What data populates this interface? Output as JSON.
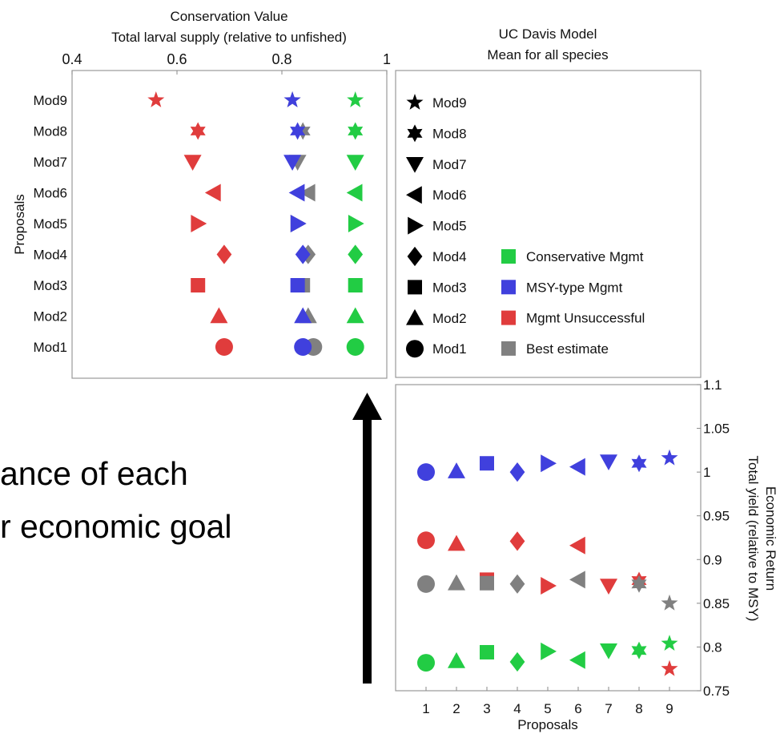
{
  "slide_text": {
    "line1": "ance of each",
    "line2": "r economic goal"
  },
  "chart_data": [
    {
      "type": "scatter",
      "title": "Conservation Value",
      "xlabel": "Total larval supply (relative to unfished)",
      "ylabel": "Proposals",
      "xlim": [
        0.4,
        1
      ],
      "xticks": [
        "0.4",
        "0.6",
        "0.8",
        "1"
      ],
      "categories": [
        "Mod1",
        "Mod2",
        "Mod3",
        "Mod4",
        "Mod5",
        "Mod6",
        "Mod7",
        "Mod8",
        "Mod9"
      ],
      "series": [
        {
          "name": "Best estimate",
          "color": "#808080",
          "values": [
            0.86,
            0.85,
            0.84,
            0.85,
            0.83,
            0.85,
            0.83,
            0.84,
            0.82
          ]
        },
        {
          "name": "MSY-type Mgmt",
          "color": "#4040dd",
          "values": [
            0.84,
            0.84,
            0.83,
            0.84,
            0.83,
            0.83,
            0.82,
            0.83,
            0.82
          ]
        },
        {
          "name": "Mgmt Unsuccessful",
          "color": "#e03c3c",
          "values": [
            0.69,
            0.68,
            0.64,
            0.69,
            0.64,
            0.67,
            0.63,
            0.64,
            0.56
          ]
        },
        {
          "name": "Conservative Mgmt",
          "color": "#22cc44",
          "values": [
            0.94,
            0.94,
            0.94,
            0.94,
            0.94,
            0.94,
            0.94,
            0.94,
            0.94
          ]
        }
      ]
    },
    {
      "type": "scatter",
      "title": "Economic Return",
      "ylabel": "Total yield (relative to MSY)",
      "xlabel": "Proposals",
      "ylim": [
        0.75,
        1.1
      ],
      "yticks": [
        "0.75",
        "0.8",
        "0.85",
        "0.9",
        "0.95",
        "1",
        "1.05",
        "1.1"
      ],
      "x": [
        1,
        2,
        3,
        4,
        5,
        6,
        7,
        8,
        9
      ],
      "series": [
        {
          "name": "MSY-type Mgmt",
          "color": "#4040dd",
          "values": [
            1.0,
            1.001,
            1.01,
            1.0,
            1.01,
            1.006,
            1.012,
            1.01,
            1.016
          ]
        },
        {
          "name": "Mgmt Unsuccessful",
          "color": "#e03c3c",
          "values": [
            0.922,
            0.918,
            0.877,
            0.921,
            0.87,
            0.916,
            0.87,
            0.876,
            0.775
          ]
        },
        {
          "name": "Best estimate",
          "color": "#808080",
          "values": [
            0.872,
            0.873,
            0.873,
            0.872,
            null,
            0.877,
            null,
            0.872,
            0.85
          ]
        },
        {
          "name": "Conservative Mgmt",
          "color": "#22cc44",
          "values": [
            0.782,
            0.784,
            0.794,
            0.783,
            0.795,
            0.785,
            0.796,
            0.796,
            0.804
          ]
        }
      ]
    },
    {
      "type": "legend",
      "title": "UC Davis Model",
      "subtitle": "Mean for all species",
      "markers": [
        "Mod9",
        "Mod8",
        "Mod7",
        "Mod6",
        "Mod5",
        "Mod4",
        "Mod3",
        "Mod2",
        "Mod1"
      ],
      "colors": [
        {
          "label": "Conservative Mgmt",
          "color": "#22cc44"
        },
        {
          "label": "MSY-type Mgmt",
          "color": "#4040dd"
        },
        {
          "label": "Mgmt Unsuccessful",
          "color": "#e03c3c"
        },
        {
          "label": "Best estimate",
          "color": "#808080"
        }
      ]
    }
  ]
}
